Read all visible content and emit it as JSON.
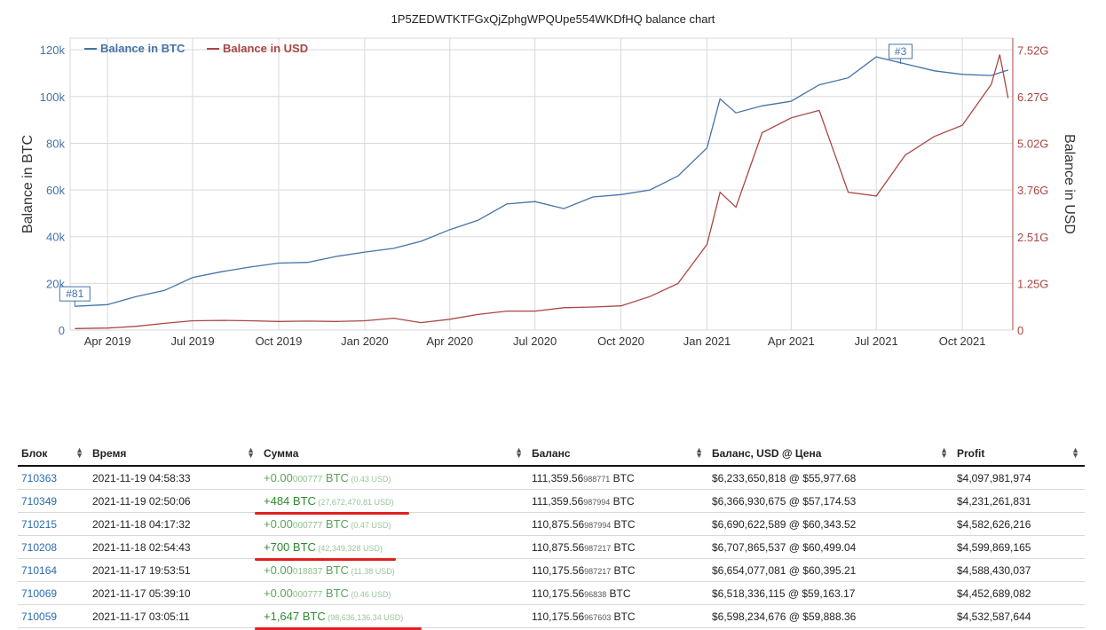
{
  "chart_data": {
    "type": "line",
    "title": "1P5ZEDWTKTFGxQjZphgWPQUpe554WKDfHQ balance chart",
    "xlabel": "",
    "ylabel_left": "Balance in BTC",
    "ylabel_right": "Balance in USD",
    "x_ticks": [
      "Apr 2019",
      "Jul 2019",
      "Oct 2019",
      "Jan 2020",
      "Apr 2020",
      "Jul 2020",
      "Oct 2020",
      "Jan 2021",
      "Apr 2021",
      "Jul 2021",
      "Oct 2021"
    ],
    "y_left_ticks": [
      "0",
      "20k",
      "40k",
      "60k",
      "80k",
      "100k",
      "120k"
    ],
    "y_right_ticks": [
      "0",
      "1.25G",
      "2.51G",
      "3.76G",
      "5.02G",
      "6.27G",
      "7.52G"
    ],
    "ylim_left": [
      0,
      125000
    ],
    "ylim_right": [
      0,
      7840000000
    ],
    "grid": true,
    "legend_position": "top-left",
    "flags": [
      {
        "label": "#81",
        "x": "2019-02-25",
        "series": "Balance in BTC"
      },
      {
        "label": "#3",
        "x": "2021-07-27",
        "series": "Balance in BTC"
      }
    ],
    "series": [
      {
        "name": "Balance in BTC",
        "color": "#4572a7",
        "axis": "left",
        "points": [
          [
            "2019-02-25",
            10200
          ],
          [
            "2019-04-01",
            10900
          ],
          [
            "2019-05-01",
            14300
          ],
          [
            "2019-06-01",
            17000
          ],
          [
            "2019-07-01",
            22500
          ],
          [
            "2019-08-01",
            25000
          ],
          [
            "2019-09-01",
            27000
          ],
          [
            "2019-10-01",
            28700
          ],
          [
            "2019-11-01",
            29000
          ],
          [
            "2019-12-01",
            31500
          ],
          [
            "2020-01-01",
            33400
          ],
          [
            "2020-02-01",
            35000
          ],
          [
            "2020-03-01",
            38000
          ],
          [
            "2020-04-01",
            43000
          ],
          [
            "2020-05-01",
            47000
          ],
          [
            "2020-06-01",
            54000
          ],
          [
            "2020-07-01",
            55000
          ],
          [
            "2020-08-01",
            52000
          ],
          [
            "2020-09-01",
            57000
          ],
          [
            "2020-10-01",
            58000
          ],
          [
            "2020-11-01",
            60000
          ],
          [
            "2020-12-01",
            66000
          ],
          [
            "2021-01-01",
            78000
          ],
          [
            "2021-01-15",
            99000
          ],
          [
            "2021-02-01",
            93000
          ],
          [
            "2021-03-01",
            96000
          ],
          [
            "2021-04-01",
            98000
          ],
          [
            "2021-05-01",
            105000
          ],
          [
            "2021-06-01",
            108000
          ],
          [
            "2021-07-01",
            117000
          ],
          [
            "2021-08-01",
            114000
          ],
          [
            "2021-09-01",
            111000
          ],
          [
            "2021-10-01",
            109500
          ],
          [
            "2021-11-01",
            109000
          ],
          [
            "2021-11-19",
            111360
          ]
        ]
      },
      {
        "name": "Balance in USD",
        "color": "#aa4643",
        "axis": "right",
        "points": [
          [
            "2019-02-25",
            40000000
          ],
          [
            "2019-04-01",
            55000000
          ],
          [
            "2019-05-01",
            100000000
          ],
          [
            "2019-06-01",
            180000000
          ],
          [
            "2019-07-01",
            250000000
          ],
          [
            "2019-08-01",
            260000000
          ],
          [
            "2019-09-01",
            250000000
          ],
          [
            "2019-10-01",
            230000000
          ],
          [
            "2019-11-01",
            240000000
          ],
          [
            "2019-12-01",
            230000000
          ],
          [
            "2020-01-01",
            250000000
          ],
          [
            "2020-02-01",
            320000000
          ],
          [
            "2020-03-01",
            200000000
          ],
          [
            "2020-04-01",
            290000000
          ],
          [
            "2020-05-01",
            420000000
          ],
          [
            "2020-06-01",
            510000000
          ],
          [
            "2020-07-01",
            510000000
          ],
          [
            "2020-08-01",
            600000000
          ],
          [
            "2020-09-01",
            620000000
          ],
          [
            "2020-10-01",
            650000000
          ],
          [
            "2020-11-01",
            900000000
          ],
          [
            "2020-12-01",
            1250000000
          ],
          [
            "2021-01-01",
            2300000000
          ],
          [
            "2021-01-15",
            3700000000
          ],
          [
            "2021-02-01",
            3300000000
          ],
          [
            "2021-03-01",
            5300000000
          ],
          [
            "2021-04-01",
            5700000000
          ],
          [
            "2021-05-01",
            5900000000
          ],
          [
            "2021-06-01",
            3700000000
          ],
          [
            "2021-07-01",
            3600000000
          ],
          [
            "2021-08-01",
            4700000000
          ],
          [
            "2021-09-01",
            5200000000
          ],
          [
            "2021-10-01",
            5500000000
          ],
          [
            "2021-11-01",
            6600000000
          ],
          [
            "2021-11-10",
            7400000000
          ],
          [
            "2021-11-19",
            6230000000
          ]
        ]
      }
    ]
  },
  "table": {
    "headers": [
      "Блок",
      "Время",
      "Сумма",
      "Баланс",
      "Баланс, USD @ Цена",
      "Profit"
    ],
    "rows": [
      {
        "block": "710363",
        "time": "2021-11-19 04:58:33",
        "amount": "+0.00",
        "amount_small": "000777",
        "amount_unit": " BTC",
        "amount_usd": " (0.43 USD)",
        "balance": "111,359.56",
        "balance_small": "988771",
        "balance_unit": " BTC",
        "balance_usd": "$6,233,650,818 @ $55,977.68",
        "profit": "$4,097,981,974",
        "highlight": false
      },
      {
        "block": "710349",
        "time": "2021-11-19 02:50:06",
        "amount": "+484 BTC",
        "amount_small": "",
        "amount_unit": "",
        "amount_usd": " (27,672,470.81 USD)",
        "balance": "111,359.56",
        "balance_small": "987994",
        "balance_unit": " BTC",
        "balance_usd": "$6,366,930,675 @ $57,174.53",
        "profit": "$4,231,261,831",
        "highlight": true
      },
      {
        "block": "710215",
        "time": "2021-11-18 04:17:32",
        "amount": "+0.00",
        "amount_small": "000777",
        "amount_unit": " BTC",
        "amount_usd": " (0.47 USD)",
        "balance": "110,875.56",
        "balance_small": "987994",
        "balance_unit": " BTC",
        "balance_usd": "$6,690,622,589 @ $60,343.52",
        "profit": "$4,582,626,216",
        "highlight": false
      },
      {
        "block": "710208",
        "time": "2021-11-18 02:54:43",
        "amount": "+700 BTC",
        "amount_small": "",
        "amount_unit": "",
        "amount_usd": " (42,349,328 USD)",
        "balance": "110,875.56",
        "balance_small": "987217",
        "balance_unit": " BTC",
        "balance_usd": "$6,707,865,537 @ $60,499.04",
        "profit": "$4,599,869,165",
        "highlight": true
      },
      {
        "block": "710164",
        "time": "2021-11-17 19:53:51",
        "amount": "+0.00",
        "amount_small": "018837",
        "amount_unit": " BTC",
        "amount_usd": " (11.38 USD)",
        "balance": "110,175.56",
        "balance_small": "987217",
        "balance_unit": " BTC",
        "balance_usd": "$6,654,077,081 @ $60,395.21",
        "profit": "$4,588,430,037",
        "highlight": false
      },
      {
        "block": "710069",
        "time": "2021-11-17 05:39:10",
        "amount": "+0.00",
        "amount_small": "000777",
        "amount_unit": " BTC",
        "amount_usd": " (0.46 USD)",
        "balance": "110,175.56",
        "balance_small": "96838",
        "balance_unit": " BTC",
        "balance_usd": "$6,518,336,115 @ $59,163.17",
        "profit": "$4,452,689,082",
        "highlight": false
      },
      {
        "block": "710059",
        "time": "2021-11-17 03:05:11",
        "amount": "+1,647 BTC",
        "amount_small": "",
        "amount_unit": "",
        "amount_usd": " (98,636,136.34 USD)",
        "balance": "110,175.56",
        "balance_small": "967603",
        "balance_unit": " BTC",
        "balance_usd": "$6,598,234,676 @ $59,888.36",
        "profit": "$4,532,587,644",
        "highlight": true
      }
    ]
  },
  "colors": {
    "btc": "#4572a7",
    "usd": "#aa4643",
    "grid": "#d9d9d9",
    "link": "#2a6bb0",
    "mark": "#e02020"
  }
}
